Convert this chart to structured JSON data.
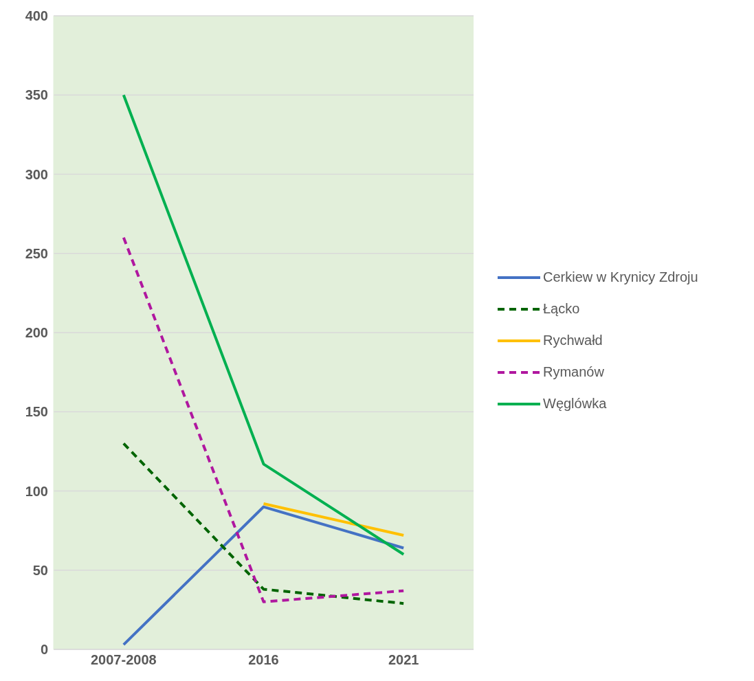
{
  "chart_data": {
    "type": "line",
    "categories": [
      "2007-2008",
      "2016",
      "2021"
    ],
    "series": [
      {
        "name": "Cerkiew w Krynicy Zdroju",
        "color": "#4472c4",
        "line_style": "solid",
        "values": [
          3,
          90,
          64
        ]
      },
      {
        "name": "Łącko",
        "color": "#006400",
        "line_style": "dashed",
        "values": [
          130,
          38,
          29
        ]
      },
      {
        "name": "Rychwałd",
        "color": "#ffc000",
        "line_style": "solid",
        "values": [
          null,
          92,
          72
        ]
      },
      {
        "name": "Rymanów",
        "color": "#b0179f",
        "line_style": "dashed",
        "values": [
          260,
          30,
          37
        ]
      },
      {
        "name": "Węglówka",
        "color": "#00b050",
        "line_style": "solid",
        "values": [
          350,
          117,
          60
        ]
      }
    ],
    "ylim": [
      0,
      400
    ],
    "yticks": [
      0,
      50,
      100,
      150,
      200,
      250,
      300,
      350,
      400
    ],
    "grid": "y",
    "legend": "right",
    "marker": "none"
  }
}
